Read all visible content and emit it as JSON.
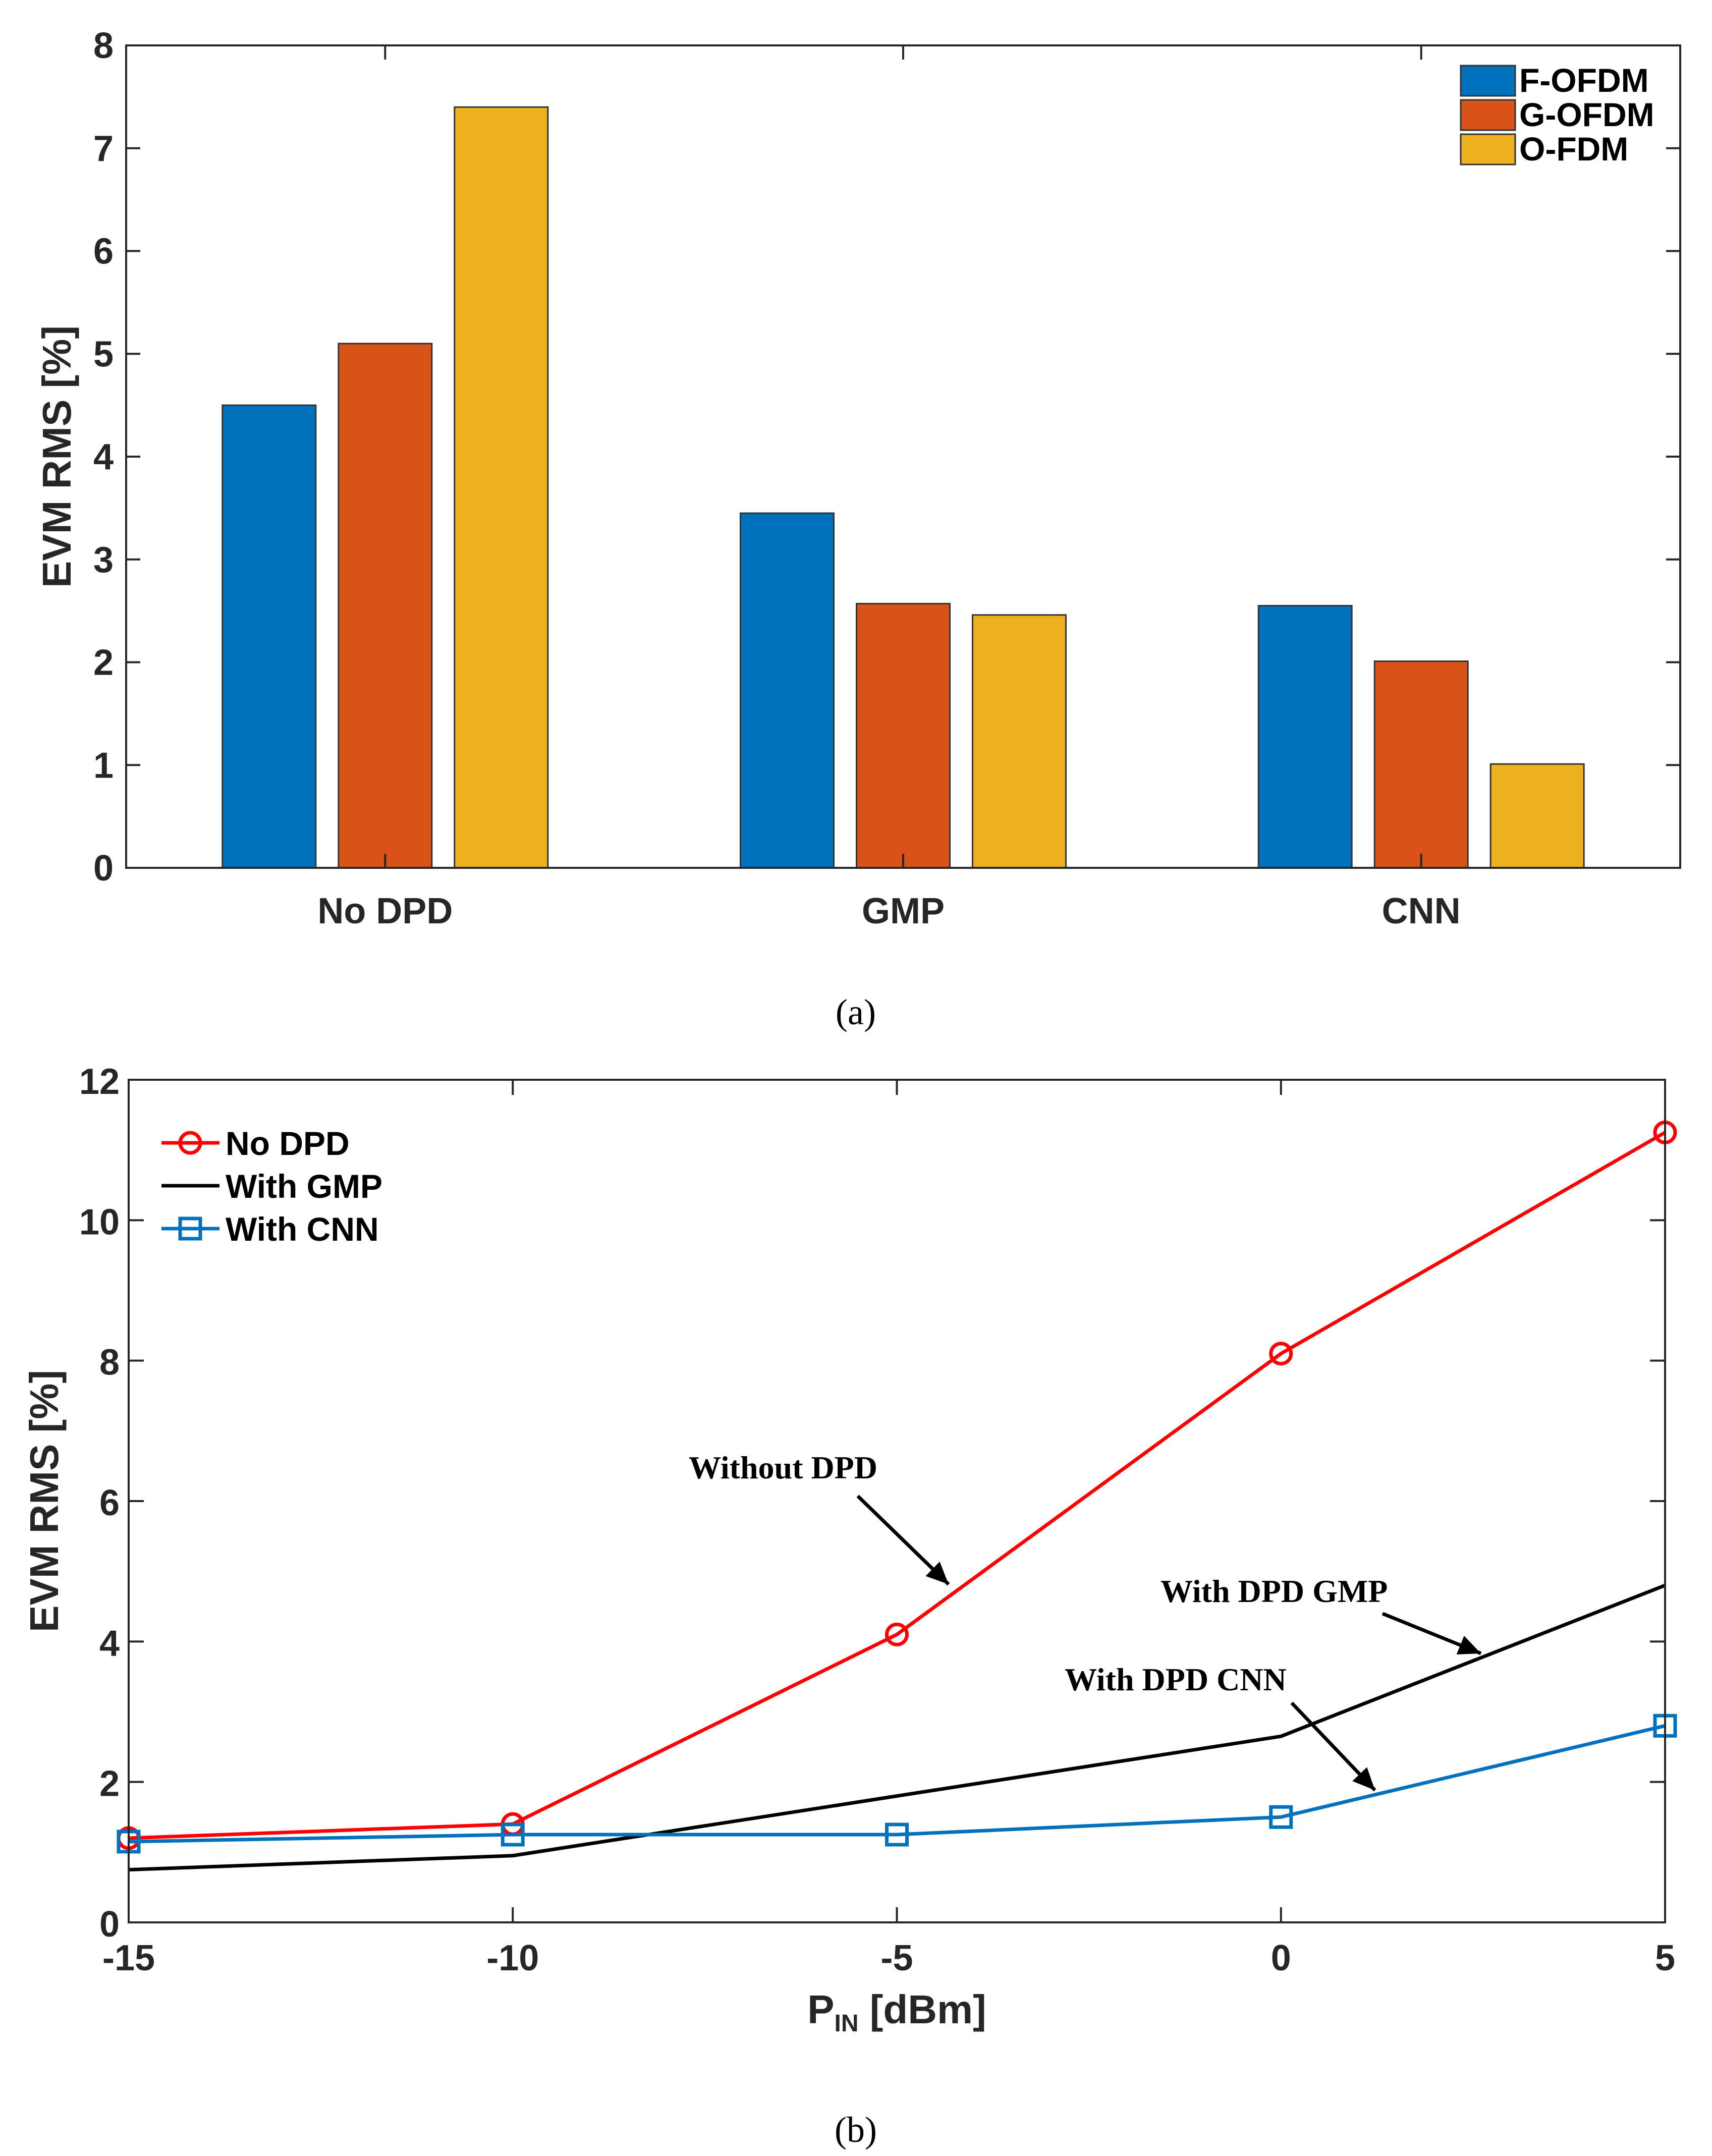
{
  "captions": {
    "a": "(a)",
    "b": "(b)"
  },
  "chart_data": [
    {
      "type": "bar",
      "categories": [
        "No DPD",
        "GMP",
        "CNN"
      ],
      "series": [
        {
          "name": "F-OFDM",
          "values": [
            4.5,
            3.45,
            2.55
          ],
          "color": "#0072BD"
        },
        {
          "name": "G-OFDM",
          "values": [
            5.1,
            2.57,
            2.01
          ],
          "color": "#D95319"
        },
        {
          "name": "O-FDM",
          "values": [
            7.4,
            2.46,
            1.01
          ],
          "color": "#EDB120"
        }
      ],
      "title": "",
      "xlabel": "",
      "ylabel": "EVM RMS [%]",
      "ylim": [
        0,
        8
      ],
      "yticks": [
        0,
        1,
        2,
        3,
        4,
        5,
        6,
        7,
        8
      ],
      "legend_location": "top-right"
    },
    {
      "type": "line",
      "x": [
        -15,
        -10,
        -5,
        0,
        5
      ],
      "series": [
        {
          "name": "No DPD",
          "values": [
            1.2,
            1.4,
            4.1,
            8.1,
            11.25
          ],
          "color": "#FF0000",
          "marker": "circle"
        },
        {
          "name": "With GMP",
          "values": [
            0.75,
            0.95,
            1.8,
            2.65,
            4.8
          ],
          "color": "#000000",
          "marker": "none"
        },
        {
          "name": "With CNN",
          "values": [
            1.15,
            1.25,
            1.25,
            1.5,
            2.8
          ],
          "color": "#0072BD",
          "marker": "square"
        }
      ],
      "title": "",
      "xlabel_main": "P",
      "xlabel_sub": "IN",
      "xlabel_unit": " [dBm]",
      "ylabel": "EVM RMS [%]",
      "xlim": [
        -15,
        5
      ],
      "ylim": [
        0,
        12
      ],
      "xticks": [
        -15,
        -10,
        -5,
        0,
        5
      ],
      "yticks": [
        0,
        2,
        4,
        6,
        8,
        10,
        12
      ],
      "legend_location": "top-left",
      "annotations": [
        {
          "text": "Without DPD",
          "target_x": -4.5,
          "target_y": 4.7
        },
        {
          "text": "With DPD GMP",
          "target_x": 2.6,
          "target_y": 3.75
        },
        {
          "text": "With DPD CNN",
          "target_x": 1.2,
          "target_y": 1.8
        }
      ]
    }
  ]
}
